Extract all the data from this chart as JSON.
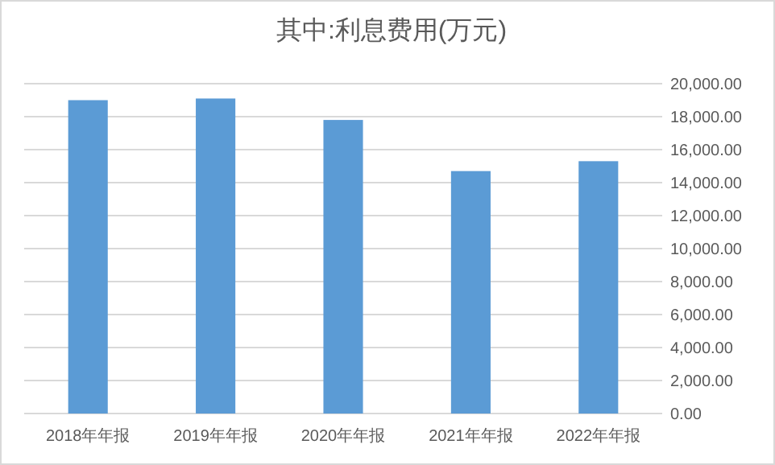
{
  "chart_data": {
    "type": "bar",
    "title": "其中:利息费用(万元)",
    "categories": [
      "2018年年报",
      "2019年年报",
      "2020年年报",
      "2021年年报",
      "2022年年报"
    ],
    "values": [
      19000,
      19100,
      17800,
      14700,
      15300
    ],
    "color": "#5b9bd5",
    "ylim": [
      0,
      20000
    ],
    "yticks": [
      {
        "value": 0,
        "label": "0.00"
      },
      {
        "value": 2000,
        "label": "2,000.00"
      },
      {
        "value": 4000,
        "label": "4,000.00"
      },
      {
        "value": 6000,
        "label": "6,000.00"
      },
      {
        "value": 8000,
        "label": "8,000.00"
      },
      {
        "value": 10000,
        "label": "10,000.00"
      },
      {
        "value": 12000,
        "label": "12,000.00"
      },
      {
        "value": 14000,
        "label": "14,000.00"
      },
      {
        "value": 16000,
        "label": "16,000.00"
      },
      {
        "value": 18000,
        "label": "18,000.00"
      },
      {
        "value": 20000,
        "label": "20,000.00"
      }
    ],
    "grid": "y"
  }
}
